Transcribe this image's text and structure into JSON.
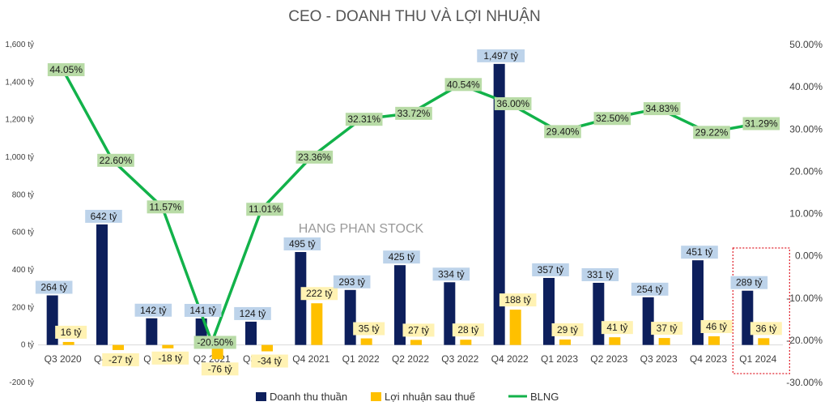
{
  "chart_data": {
    "type": "bar",
    "title": "CEO - DOANH THU VÀ LỢI NHUẬN",
    "watermark": "HANG PHAN STOCK",
    "categories": [
      "Q3 2020",
      "Q4 2020",
      "Q1 2021",
      "Q2 2021",
      "Q3 2021",
      "Q4 2021",
      "Q1 2022",
      "Q2 2022",
      "Q3 2022",
      "Q4 2022",
      "Q1 2023",
      "Q2 2023",
      "Q3 2023",
      "Q4 2023",
      "Q1 2024"
    ],
    "series": [
      {
        "name": "Doanh thu thuần",
        "type": "bar",
        "axis": "left",
        "color": "#0d1f5c",
        "label_bg": "#bdd3ea",
        "values": [
          264,
          642,
          142,
          141,
          124,
          495,
          293,
          425,
          334,
          1497,
          357,
          331,
          254,
          451,
          289
        ],
        "labels": [
          "264 tỷ",
          "642 tỷ",
          "142 tỷ",
          "141 tỷ",
          "124 tỷ",
          "495 tỷ",
          "293 tỷ",
          "425 tỷ",
          "334 tỷ",
          "1,497 tỷ",
          "357 tỷ",
          "331 tỷ",
          "254 tỷ",
          "451 tỷ",
          "289 tỷ"
        ]
      },
      {
        "name": "Lợi nhuận sau thuế",
        "type": "bar",
        "axis": "left",
        "color": "#ffc000",
        "label_bg": "#fff2b3",
        "values": [
          16,
          -27,
          -18,
          -76,
          -34,
          222,
          35,
          27,
          28,
          188,
          29,
          41,
          37,
          46,
          36
        ],
        "labels": [
          "16 tỷ",
          "-27 tỷ",
          "-18 tỷ",
          "-76 tỷ",
          "-34 tỷ",
          "222 tỷ",
          "35 tỷ",
          "27 tỷ",
          "28 tỷ",
          "188 tỷ",
          "29 tỷ",
          "41 tỷ",
          "37 tỷ",
          "46 tỷ",
          "36 tỷ"
        ]
      },
      {
        "name": "BLNG",
        "type": "line",
        "axis": "right",
        "color": "#12b24a",
        "label_bg": "#b8dba6",
        "values": [
          44.05,
          22.6,
          11.57,
          -20.5,
          11.01,
          23.36,
          32.31,
          33.72,
          40.54,
          36.0,
          29.4,
          32.5,
          34.83,
          29.22,
          31.29
        ],
        "labels": [
          "44.05%",
          "22.60%",
          "11.57%",
          "-20.50%",
          "11.01%",
          "23.36%",
          "32.31%",
          "33.72%",
          "40.54%",
          "36.00%",
          "29.40%",
          "32.50%",
          "34.83%",
          "29.22%",
          "31.29%"
        ]
      }
    ],
    "y_axis": {
      "ylim": [
        -200,
        1600
      ],
      "ticks": [
        -200,
        0,
        200,
        400,
        600,
        800,
        1000,
        1200,
        1400,
        1600
      ],
      "tick_labels": [
        "-200 tỷ",
        "0 tỷ",
        "200 tỷ",
        "400 tỷ",
        "600 tỷ",
        "800 tỷ",
        "1,000 tỷ",
        "1,200 tỷ",
        "1,400 tỷ",
        "1,600 tỷ"
      ]
    },
    "y2_axis": {
      "ylim": [
        -30,
        50
      ],
      "ticks": [
        -30,
        -20,
        -10,
        0,
        10,
        20,
        30,
        40,
        50
      ],
      "tick_labels": [
        "-30.00%",
        "-20.00%",
        "-10.00%",
        "0.00%",
        "10.00%",
        "20.00%",
        "30.00%",
        "40.00%",
        "50.00%"
      ]
    },
    "grid": false,
    "legend": "bottom",
    "highlight_category": "Q1 2024"
  }
}
